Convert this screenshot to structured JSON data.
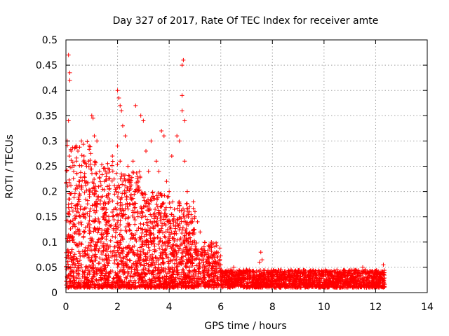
{
  "chart_data": {
    "type": "scatter",
    "title": "Day 327 of 2017, Rate Of TEC Index for receiver amte",
    "xlabel": "GPS time / hours",
    "ylabel": "ROTI / TECUs",
    "xlim": [
      0,
      14
    ],
    "ylim": [
      0,
      0.5
    ],
    "x_ticks": [
      0,
      2,
      4,
      6,
      8,
      10,
      12,
      14
    ],
    "y_ticks": [
      0,
      0.05,
      0.1,
      0.15,
      0.2,
      0.25,
      0.3,
      0.35,
      0.4,
      0.45,
      0.5
    ],
    "x_tick_labels": [
      "0",
      "2",
      "4",
      "6",
      "8",
      "10",
      "12",
      "14"
    ],
    "y_tick_labels": [
      "0",
      "0.05",
      "0.1",
      "0.15",
      "0.2",
      "0.25",
      "0.3",
      "0.35",
      "0.4",
      "0.45",
      "0.5"
    ],
    "grid": true,
    "marker": "+",
    "marker_color": "#ff0000",
    "series": [
      {
        "name": "ROTI",
        "points": [
          [
            0.1,
            0.47
          ],
          [
            0.15,
            0.435
          ],
          [
            0.15,
            0.42
          ],
          [
            0.05,
            0.3
          ],
          [
            0.1,
            0.34
          ],
          [
            0.2,
            0.28
          ],
          [
            0.3,
            0.24
          ],
          [
            0.4,
            0.26
          ],
          [
            0.5,
            0.22
          ],
          [
            0.6,
            0.3
          ],
          [
            0.7,
            0.27
          ],
          [
            0.8,
            0.25
          ],
          [
            0.9,
            0.29
          ],
          [
            1.0,
            0.35
          ],
          [
            1.05,
            0.345
          ],
          [
            1.1,
            0.31
          ],
          [
            1.2,
            0.3
          ],
          [
            1.3,
            0.24
          ],
          [
            1.5,
            0.22
          ],
          [
            1.6,
            0.21
          ],
          [
            1.8,
            0.27
          ],
          [
            2.0,
            0.4
          ],
          [
            2.05,
            0.385
          ],
          [
            2.1,
            0.37
          ],
          [
            2.15,
            0.36
          ],
          [
            2.2,
            0.33
          ],
          [
            2.3,
            0.31
          ],
          [
            2.0,
            0.29
          ],
          [
            2.1,
            0.26
          ],
          [
            2.4,
            0.25
          ],
          [
            2.6,
            0.26
          ],
          [
            2.7,
            0.37
          ],
          [
            2.9,
            0.35
          ],
          [
            3.0,
            0.34
          ],
          [
            3.1,
            0.28
          ],
          [
            3.2,
            0.24
          ],
          [
            3.3,
            0.3
          ],
          [
            3.5,
            0.26
          ],
          [
            3.6,
            0.24
          ],
          [
            3.7,
            0.32
          ],
          [
            3.8,
            0.31
          ],
          [
            3.9,
            0.22
          ],
          [
            4.0,
            0.2
          ],
          [
            4.1,
            0.27
          ],
          [
            4.3,
            0.31
          ],
          [
            4.4,
            0.3
          ],
          [
            4.5,
            0.36
          ],
          [
            4.55,
            0.46
          ],
          [
            4.5,
            0.45
          ],
          [
            4.5,
            0.39
          ],
          [
            4.6,
            0.34
          ],
          [
            4.6,
            0.26
          ],
          [
            4.7,
            0.2
          ],
          [
            4.8,
            0.17
          ],
          [
            5.0,
            0.16
          ],
          [
            5.1,
            0.14
          ],
          [
            5.2,
            0.12
          ],
          [
            5.3,
            0.08
          ],
          [
            5.5,
            0.07
          ],
          [
            5.8,
            0.06
          ],
          [
            6.0,
            0.055
          ],
          [
            6.5,
            0.05
          ],
          [
            7.0,
            0.045
          ],
          [
            7.5,
            0.06
          ],
          [
            7.55,
            0.08
          ],
          [
            7.6,
            0.065
          ],
          [
            8.0,
            0.04
          ],
          [
            8.5,
            0.042
          ],
          [
            9.0,
            0.038
          ],
          [
            9.5,
            0.04
          ],
          [
            10.0,
            0.035
          ],
          [
            10.5,
            0.045
          ],
          [
            11.0,
            0.04
          ],
          [
            11.5,
            0.05
          ],
          [
            12.0,
            0.04
          ],
          [
            12.3,
            0.055
          ],
          [
            12.3,
            0.025
          ]
        ],
        "dense_band": {
          "description": "dense cloud of ROTI samples",
          "segments": [
            {
              "x": [
                0.0,
                1.0
              ],
              "y": [
                0.01,
                0.3
              ]
            },
            {
              "x": [
                1.0,
                2.0
              ],
              "y": [
                0.01,
                0.26
              ]
            },
            {
              "x": [
                2.0,
                3.0
              ],
              "y": [
                0.01,
                0.24
              ]
            },
            {
              "x": [
                3.0,
                4.0
              ],
              "y": [
                0.01,
                0.2
              ]
            },
            {
              "x": [
                4.0,
                5.0
              ],
              "y": [
                0.01,
                0.18
              ]
            },
            {
              "x": [
                5.0,
                6.0
              ],
              "y": [
                0.01,
                0.1
              ]
            },
            {
              "x": [
                6.0,
                12.35
              ],
              "y": [
                0.01,
                0.045
              ]
            }
          ]
        }
      }
    ]
  }
}
